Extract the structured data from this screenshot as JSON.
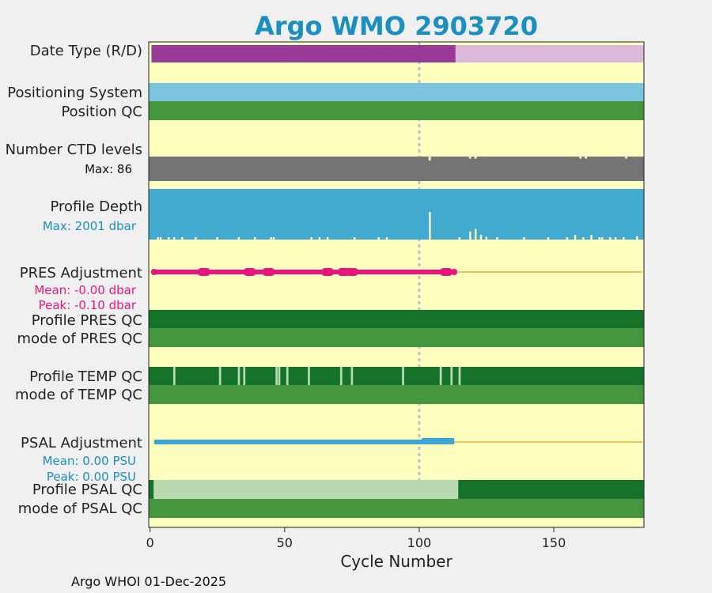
{
  "chart_data": {
    "type": "status-timeline",
    "title": "Argo WMO 2903720",
    "xlabel": "Cycle Number",
    "xlim": [
      -0.5,
      183.5
    ],
    "xticks": [
      0,
      50,
      100,
      150
    ],
    "reference_cycle": 100,
    "footer": "Argo WHOI 01-Dec-2025",
    "colors": {
      "title": "#1a8fc0",
      "background_panel": "#ffffc0",
      "delayed_mode": "#9a3a98",
      "realtime_mode": "#dcb9db",
      "positioning": "#7cc3dd",
      "qc_good": "#45963f",
      "qc_dark": "#157229",
      "qc_light": "#b9dab0",
      "ctd_bar": "#747474",
      "depth_bar": "#43aacf",
      "pres_adj": "#e8157f",
      "psal_adj": "#3ca6d3",
      "realtime_line": "#f0c060",
      "ref_line": "#c0c0c8"
    },
    "rows": {
      "date_type": {
        "label": "Date Type (R/D)",
        "delayed_until_cycle": 113
      },
      "positioning_system": {
        "label": "Positioning System"
      },
      "position_qc": {
        "label": "Position QC"
      },
      "ctd_levels": {
        "label": "Number CTD levels",
        "max_label": "Max: 86",
        "max": 86,
        "dips": [
          {
            "cycle": 104,
            "value": 84
          },
          {
            "cycle": 119,
            "value": 85
          },
          {
            "cycle": 121,
            "value": 85
          },
          {
            "cycle": 160,
            "value": 85
          },
          {
            "cycle": 162,
            "value": 85
          },
          {
            "cycle": 177,
            "value": 85
          }
        ]
      },
      "profile_depth": {
        "label": "Profile Depth",
        "max_label": "Max: 2001 dbar",
        "max": 2001,
        "shallow": [
          {
            "cycle": 3,
            "value": 1940
          },
          {
            "cycle": 4,
            "value": 1940
          },
          {
            "cycle": 7,
            "value": 1940
          },
          {
            "cycle": 9,
            "value": 1940
          },
          {
            "cycle": 12,
            "value": 1940
          },
          {
            "cycle": 17,
            "value": 1940
          },
          {
            "cycle": 25,
            "value": 1940
          },
          {
            "cycle": 33,
            "value": 1940
          },
          {
            "cycle": 39,
            "value": 1940
          },
          {
            "cycle": 45,
            "value": 1940
          },
          {
            "cycle": 46,
            "value": 1940
          },
          {
            "cycle": 60,
            "value": 1940
          },
          {
            "cycle": 63,
            "value": 1940
          },
          {
            "cycle": 66,
            "value": 1940
          },
          {
            "cycle": 76,
            "value": 1940
          },
          {
            "cycle": 85,
            "value": 1940
          },
          {
            "cycle": 88,
            "value": 1940
          },
          {
            "cycle": 104,
            "value": 960
          },
          {
            "cycle": 115,
            "value": 1940
          },
          {
            "cycle": 119,
            "value": 1700
          },
          {
            "cycle": 121,
            "value": 1600
          },
          {
            "cycle": 123,
            "value": 1930
          },
          {
            "cycle": 125,
            "value": 1900
          },
          {
            "cycle": 129,
            "value": 1940
          },
          {
            "cycle": 139,
            "value": 1940
          },
          {
            "cycle": 148,
            "value": 1940
          },
          {
            "cycle": 155,
            "value": 1940
          },
          {
            "cycle": 158,
            "value": 1930
          },
          {
            "cycle": 161,
            "value": 1940
          },
          {
            "cycle": 164,
            "value": 1930
          },
          {
            "cycle": 167,
            "value": 1940
          },
          {
            "cycle": 168,
            "value": 1940
          },
          {
            "cycle": 171,
            "value": 1940
          },
          {
            "cycle": 173,
            "value": 1940
          },
          {
            "cycle": 176,
            "value": 1940
          },
          {
            "cycle": 181,
            "value": 1870
          }
        ]
      },
      "pres_adjustment": {
        "label": "PRES Adjustment",
        "mean_label": "Mean: -0.00 dbar",
        "peak_label": "Peak: -0.10 dbar",
        "adjusted_until_cycle": 113,
        "bumps": [
          20,
          37,
          44,
          66,
          72,
          75,
          110
        ]
      },
      "profile_pres_qc": {
        "label": "Profile PRES QC"
      },
      "mode_pres_qc": {
        "label": "mode of PRES QC"
      },
      "profile_temp_qc": {
        "label": "Profile TEMP QC",
        "light_cycles": [
          9,
          26,
          33,
          35,
          47,
          48,
          51,
          59,
          71,
          75,
          94,
          108,
          112,
          115
        ]
      },
      "mode_temp_qc": {
        "label": "mode of TEMP QC"
      },
      "psal_adjustment": {
        "label": "PSAL Adjustment",
        "mean_label": "Mean: 0.00 PSU",
        "peak_label": "Peak: 0.00 PSU",
        "adjusted_until_cycle": 113
      },
      "profile_psal_qc": {
        "label": "Profile PSAL QC",
        "light_from": 1,
        "light_until": 114
      },
      "mode_psal_qc": {
        "label": "mode of PSAL QC"
      }
    }
  }
}
